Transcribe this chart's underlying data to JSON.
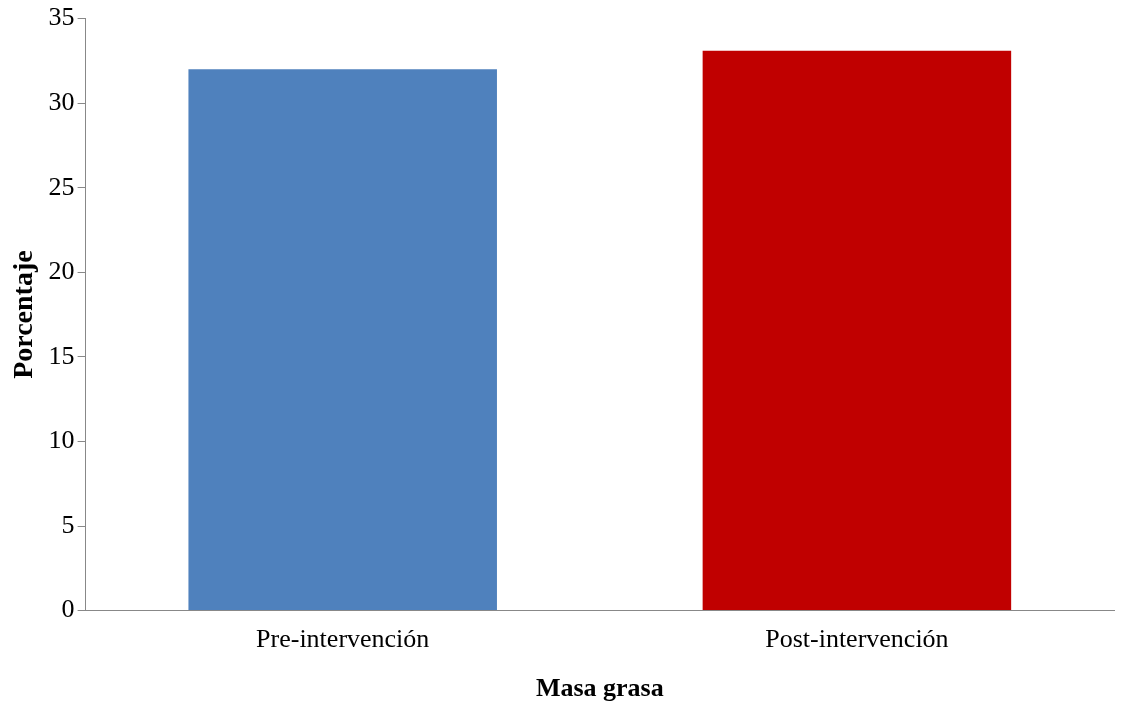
{
  "chart_data": {
    "type": "bar",
    "xlabel": "Masa grasa",
    "ylabel": "Porcentaje",
    "categories": [
      "Pre-intervención",
      "Post-intervención"
    ],
    "values": [
      32.0,
      33.1
    ],
    "colors": [
      "#4f81bd",
      "#c00000"
    ],
    "ylim": [
      0,
      35
    ],
    "yticks": [
      0,
      5,
      10,
      15,
      20,
      25,
      30,
      35
    ],
    "grid": false,
    "legend": false
  }
}
